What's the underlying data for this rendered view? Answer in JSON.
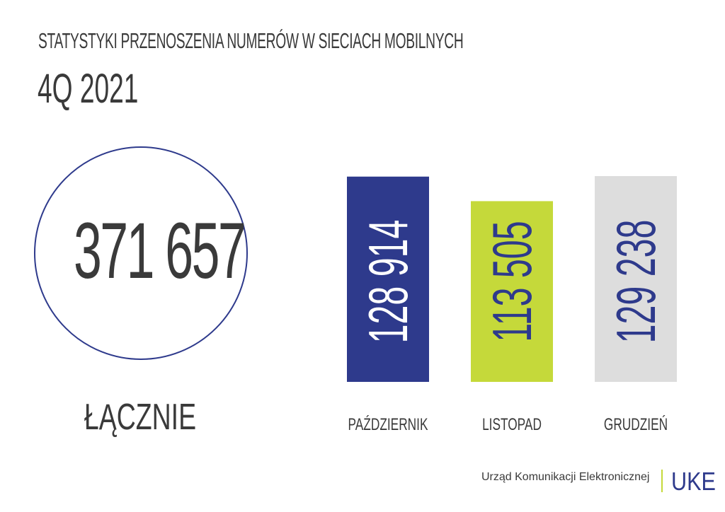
{
  "header": {
    "title": "STATYSTYKI PRZENOSZENIA NUMERÓW W SIECIACH MOBILNYCH",
    "subtitle": "4Q 2021"
  },
  "total": {
    "value": "371 657",
    "label": "ŁĄCZNIE"
  },
  "chart_data": {
    "type": "bar",
    "categories": [
      "PAŹDZIERNIK",
      "LISTOPAD",
      "GRUDZIEŃ"
    ],
    "values": [
      128914,
      113505,
      129238
    ],
    "value_labels": [
      "128 914",
      "113 505",
      "129 238"
    ],
    "bar_colors": [
      "#2e3a8c",
      "#c5d93a",
      "#dddddd"
    ],
    "value_label_colors": [
      "#ffffff",
      "#2e3a8c",
      "#2e3a8c"
    ],
    "label_color": "#3a3a3a",
    "title": "",
    "xlabel": "",
    "ylabel": ""
  },
  "footer": {
    "organization": "Urząd Komunikacji Elektronicznej",
    "logo": "UKE",
    "accent_color": "#2e3a8c",
    "divider_color": "#c5d93a"
  }
}
